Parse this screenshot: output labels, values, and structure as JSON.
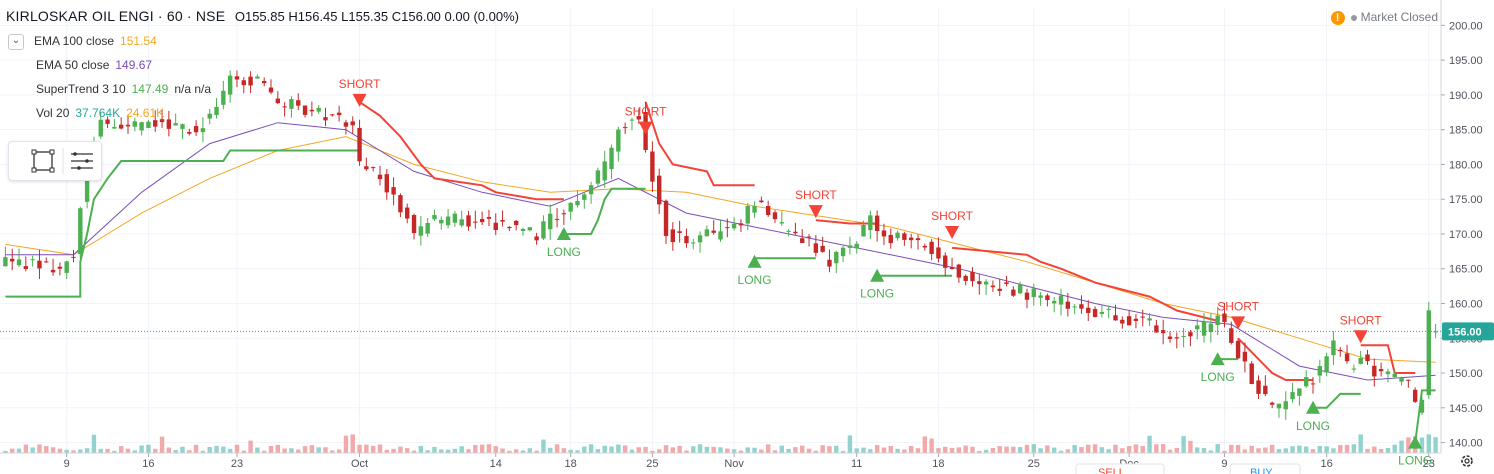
{
  "header": {
    "symbol": "KIRLOSKAR OIL ENGI · 60 · NSE",
    "open": "O155.85",
    "high": "H156.45",
    "low": "L155.35",
    "close": "C156.00",
    "change": "0.00 (0.00%)"
  },
  "indicators": [
    {
      "label": "EMA 100 close",
      "value": "151.54",
      "color": "#f5a623"
    },
    {
      "label": "EMA 50 close",
      "value": "149.67",
      "color": "#7b4fb8"
    },
    {
      "label": "SuperTrend 3 10",
      "value": "147.49",
      "extra": "n/a n/a",
      "color": "#4caf50"
    },
    {
      "label": "Vol 20",
      "value": "37.764K",
      "value2": "24.61K",
      "color": "#26a69a",
      "color2": "#f5a623"
    }
  ],
  "status": {
    "market": "Market Closed",
    "warn_icon": "!"
  },
  "toolbar": {
    "icons": [
      "rectangle-select-icon",
      "menu-lines-icon"
    ]
  },
  "bottom_buttons": {
    "sell": "SELL",
    "buy": "BUY"
  },
  "price_label": "156.00",
  "colors": {
    "up": "#4caf50",
    "down": "#c62828",
    "st_up": "#4caf50",
    "st_down": "#f44336",
    "ema100": "#f5a623",
    "ema50": "#7b4fb8",
    "vol_up": "#80cbc4",
    "vol_down": "#ef9a9a"
  },
  "chart_data": {
    "type": "candlestick",
    "ylim": [
      138.5,
      202.5
    ],
    "y_ticks": [
      140,
      145,
      150,
      155,
      160,
      165,
      170,
      175,
      180,
      185,
      190,
      195,
      200
    ],
    "x_ticks": [
      {
        "label": "9",
        "i": 9
      },
      {
        "label": "16",
        "i": 21
      },
      {
        "label": "23",
        "i": 34
      },
      {
        "label": "Oct",
        "i": 52
      },
      {
        "label": "14",
        "i": 72
      },
      {
        "label": "18",
        "i": 83
      },
      {
        "label": "25",
        "i": 95
      },
      {
        "label": "Nov",
        "i": 107
      },
      {
        "label": "11",
        "i": 125
      },
      {
        "label": "18",
        "i": 137
      },
      {
        "label": "25",
        "i": 151
      },
      {
        "label": "Dec",
        "i": 165
      },
      {
        "label": "9",
        "i": 179
      },
      {
        "label": "16",
        "i": 194
      },
      {
        "label": "23",
        "i": 209
      }
    ],
    "keys": [
      [
        0,
        166
      ],
      [
        8,
        165
      ],
      [
        10,
        167
      ],
      [
        12,
        182
      ],
      [
        14,
        186
      ],
      [
        18,
        185
      ],
      [
        22,
        186
      ],
      [
        28,
        185
      ],
      [
        31,
        188
      ],
      [
        33,
        192
      ],
      [
        37,
        192
      ],
      [
        40,
        189
      ],
      [
        44,
        188
      ],
      [
        48,
        187
      ],
      [
        51,
        186
      ],
      [
        52,
        180
      ],
      [
        55,
        178
      ],
      [
        58,
        174
      ],
      [
        60,
        170
      ],
      [
        63,
        172
      ],
      [
        68,
        172
      ],
      [
        75,
        171
      ],
      [
        78,
        170
      ],
      [
        80,
        172
      ],
      [
        84,
        175
      ],
      [
        86,
        177
      ],
      [
        88,
        180
      ],
      [
        90,
        185
      ],
      [
        93,
        187
      ],
      [
        95,
        178
      ],
      [
        97,
        170
      ],
      [
        100,
        169
      ],
      [
        104,
        170
      ],
      [
        106,
        171
      ],
      [
        108,
        172
      ],
      [
        110,
        175
      ],
      [
        112,
        173
      ],
      [
        115,
        170
      ],
      [
        118,
        169
      ],
      [
        121,
        166
      ],
      [
        124,
        168
      ],
      [
        127,
        172
      ],
      [
        129,
        170
      ],
      [
        132,
        169
      ],
      [
        136,
        168
      ],
      [
        140,
        164
      ],
      [
        144,
        163
      ],
      [
        148,
        162
      ],
      [
        152,
        161
      ],
      [
        156,
        160
      ],
      [
        160,
        159
      ],
      [
        164,
        158
      ],
      [
        168,
        157
      ],
      [
        172,
        155
      ],
      [
        175,
        156
      ],
      [
        178,
        158
      ],
      [
        180,
        155
      ],
      [
        182,
        151
      ],
      [
        185,
        146
      ],
      [
        187,
        145
      ],
      [
        190,
        148
      ],
      [
        193,
        150
      ],
      [
        195,
        154
      ],
      [
        197,
        151
      ],
      [
        199,
        152
      ],
      [
        201,
        150
      ],
      [
        204,
        149
      ],
      [
        206,
        148
      ],
      [
        207,
        145
      ],
      [
        208,
        147
      ],
      [
        209,
        160
      ],
      [
        210,
        156
      ]
    ],
    "supertrend": [
      {
        "dir": "long",
        "points": [
          [
            0,
            161
          ],
          [
            11,
            161
          ],
          [
            11,
            166
          ],
          [
            12,
            170
          ],
          [
            13,
            175
          ],
          [
            15,
            178
          ],
          [
            17,
            180.5
          ],
          [
            32,
            180.5
          ],
          [
            33,
            182
          ],
          [
            52,
            182
          ]
        ]
      },
      {
        "dir": "short",
        "points": [
          [
            52,
            189
          ],
          [
            55,
            187
          ],
          [
            58,
            184
          ],
          [
            61,
            180
          ],
          [
            63,
            178
          ],
          [
            70,
            177
          ],
          [
            72,
            176
          ],
          [
            78,
            175
          ],
          [
            82,
            175
          ]
        ]
      },
      {
        "dir": "long",
        "points": [
          [
            82,
            170
          ],
          [
            86,
            170
          ],
          [
            87,
            172
          ],
          [
            88,
            175
          ],
          [
            89,
            176.5
          ],
          [
            94,
            176.5
          ]
        ]
      },
      {
        "dir": "short",
        "points": [
          [
            94,
            189
          ],
          [
            96,
            183
          ],
          [
            98,
            180
          ],
          [
            103,
            179
          ],
          [
            104,
            177
          ],
          [
            110,
            177
          ]
        ]
      },
      {
        "dir": "long",
        "points": [
          [
            110,
            166.5
          ],
          [
            119,
            166.5
          ]
        ]
      },
      {
        "dir": "short",
        "points": [
          [
            119,
            172
          ],
          [
            124,
            171.5
          ],
          [
            128,
            171.5
          ]
        ]
      },
      {
        "dir": "long",
        "points": [
          [
            128,
            164
          ],
          [
            139,
            164
          ]
        ]
      },
      {
        "dir": "short",
        "points": [
          [
            139,
            168
          ],
          [
            150,
            167
          ],
          [
            152,
            166
          ],
          [
            155,
            165
          ],
          [
            160,
            163
          ],
          [
            164,
            162
          ],
          [
            168,
            161
          ],
          [
            170,
            160
          ],
          [
            172,
            159
          ],
          [
            176,
            158
          ],
          [
            178,
            157.5
          ]
        ]
      },
      {
        "dir": "long",
        "points": [
          [
            178,
            152
          ],
          [
            181,
            152
          ]
        ]
      },
      {
        "dir": "short",
        "points": [
          [
            181,
            155
          ],
          [
            183,
            153
          ],
          [
            186,
            150
          ],
          [
            188,
            149
          ],
          [
            192,
            149
          ]
        ]
      },
      {
        "dir": "long",
        "points": [
          [
            192,
            145
          ],
          [
            194,
            145
          ],
          [
            195,
            146
          ],
          [
            196,
            147
          ],
          [
            199,
            147
          ]
        ]
      },
      {
        "dir": "short",
        "points": [
          [
            199,
            154
          ],
          [
            203,
            154
          ],
          [
            204,
            150
          ],
          [
            207,
            150
          ]
        ]
      },
      {
        "dir": "long",
        "points": [
          [
            207,
            140
          ],
          [
            208,
            147.5
          ],
          [
            210,
            147.5
          ]
        ]
      }
    ],
    "ema100": [
      [
        0,
        168.5
      ],
      [
        10,
        167
      ],
      [
        20,
        173
      ],
      [
        30,
        178
      ],
      [
        40,
        182
      ],
      [
        50,
        184
      ],
      [
        60,
        180
      ],
      [
        70,
        177.5
      ],
      [
        80,
        176
      ],
      [
        90,
        176.5
      ],
      [
        100,
        176
      ],
      [
        110,
        174
      ],
      [
        120,
        172.5
      ],
      [
        130,
        171
      ],
      [
        140,
        168.5
      ],
      [
        150,
        166
      ],
      [
        160,
        163
      ],
      [
        170,
        160
      ],
      [
        180,
        158
      ],
      [
        190,
        155
      ],
      [
        200,
        152
      ],
      [
        210,
        151.54
      ]
    ],
    "ema50": [
      [
        0,
        167
      ],
      [
        10,
        167
      ],
      [
        20,
        176
      ],
      [
        30,
        183
      ],
      [
        40,
        186
      ],
      [
        50,
        185
      ],
      [
        60,
        179
      ],
      [
        70,
        176
      ],
      [
        80,
        174
      ],
      [
        90,
        178
      ],
      [
        100,
        173
      ],
      [
        110,
        171
      ],
      [
        120,
        169
      ],
      [
        130,
        167
      ],
      [
        140,
        165
      ],
      [
        150,
        162.5
      ],
      [
        160,
        160
      ],
      [
        170,
        158
      ],
      [
        180,
        157
      ],
      [
        190,
        151
      ],
      [
        200,
        149
      ],
      [
        210,
        149.67
      ]
    ],
    "signals": [
      {
        "type": "SHORT",
        "i": 52,
        "price": 189
      },
      {
        "type": "SHORT",
        "i": 94,
        "price": 185
      },
      {
        "type": "SHORT",
        "i": 119,
        "price": 173
      },
      {
        "type": "SHORT",
        "i": 139,
        "price": 170
      },
      {
        "type": "SHORT",
        "i": 181,
        "price": 157
      },
      {
        "type": "SHORT",
        "i": 199,
        "price": 155
      },
      {
        "type": "LONG",
        "i": 82,
        "price": 170
      },
      {
        "type": "LONG",
        "i": 110,
        "price": 166
      },
      {
        "type": "LONG",
        "i": 128,
        "price": 164
      },
      {
        "type": "LONG",
        "i": 178,
        "price": 152
      },
      {
        "type": "LONG",
        "i": 192,
        "price": 145
      },
      {
        "type": "LONG",
        "i": 207,
        "price": 140
      }
    ],
    "last_price": 156.0
  }
}
